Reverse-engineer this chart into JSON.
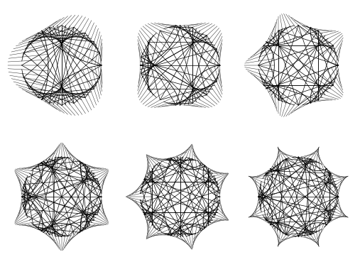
{
  "background_color": "#ffffff",
  "line_color": "#000000",
  "line_width": 0.5,
  "panels": [
    {
      "k": 3,
      "n_lines": 60,
      "scale": 1.0
    },
    {
      "k": 4,
      "n_lines": 60,
      "scale": 1.0
    },
    {
      "k": 5,
      "n_lines": 60,
      "scale": 1.0
    },
    {
      "k": 6,
      "n_lines": 80,
      "scale": 1.0
    },
    {
      "k": 7,
      "n_lines": 80,
      "scale": 1.0
    },
    {
      "k": 8,
      "n_lines": 80,
      "scale": 1.0
    }
  ],
  "grid_rows": 2,
  "grid_cols": 3
}
